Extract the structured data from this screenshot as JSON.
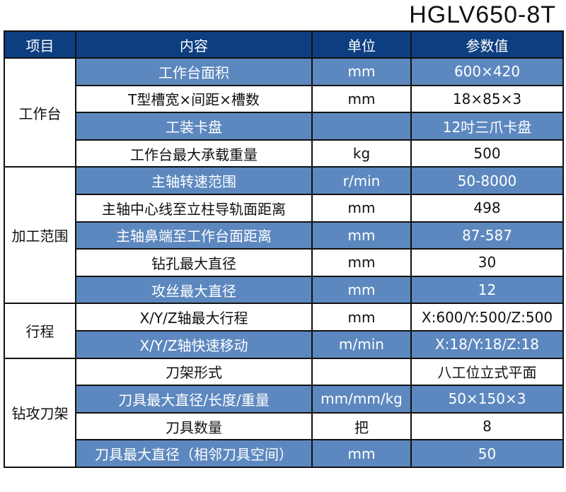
{
  "title": "HGLV650-8T",
  "headers": [
    "项目",
    "内容",
    "单位",
    "参数值"
  ],
  "colors": {
    "header_bg": "#0d3f80",
    "band_bg": "#5d88bf"
  },
  "groups": [
    {
      "name": "工作台",
      "rows": [
        {
          "item": "工作台面积",
          "unit": "mm",
          "value": "600×420"
        },
        {
          "item": "T型槽宽×间距×槽数",
          "unit": "mm",
          "value": "18×85×3"
        },
        {
          "item": "工装卡盘",
          "unit": "",
          "value": "12吋三爪卡盘"
        },
        {
          "item": "工作台最大承载重量",
          "unit": "kg",
          "value": "500"
        }
      ]
    },
    {
      "name": "加工范围",
      "rows": [
        {
          "item": "主轴转速范围",
          "unit": "r/min",
          "value": "50-8000"
        },
        {
          "item": "主轴中心线至立柱导轨面距离",
          "unit": "mm",
          "value": "498"
        },
        {
          "item": "主轴鼻端至工作台面距离",
          "unit": "mm",
          "value": "87-587"
        },
        {
          "item": "钻孔最大直径",
          "unit": "mm",
          "value": "30"
        },
        {
          "item": "攻丝最大直径",
          "unit": "mm",
          "value": "12"
        }
      ]
    },
    {
      "name": "行程",
      "rows": [
        {
          "item": "X/Y/Z轴最大行程",
          "unit": "mm",
          "value": "X:600/Y:500/Z:500"
        },
        {
          "item": "X/Y/Z轴快速移动",
          "unit": "m/min",
          "value": "X:18/Y:18/Z:18"
        }
      ]
    },
    {
      "name": "钻攻刀架",
      "rows": [
        {
          "item": "刀架形式",
          "unit": "",
          "value": "八工位立式平面"
        },
        {
          "item": "刀具最大直径/长度/重量",
          "unit": "mm/mm/kg",
          "value": "50×150×3"
        },
        {
          "item": "刀具数量",
          "unit": "把",
          "value": "8"
        },
        {
          "item": "刀具最大直径（相邻刀具空间）",
          "unit": "mm",
          "value": "50"
        }
      ]
    }
  ]
}
